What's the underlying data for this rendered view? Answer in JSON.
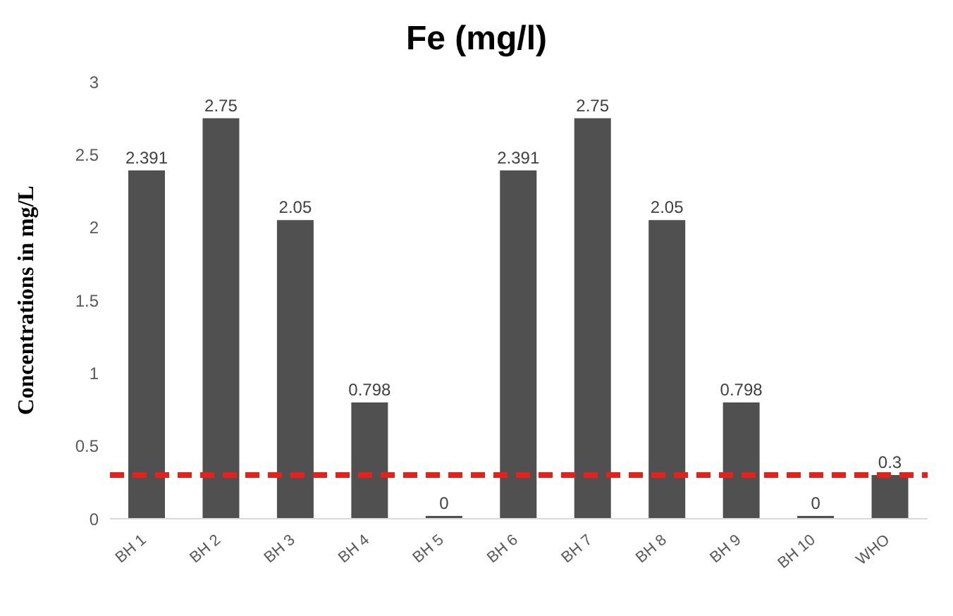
{
  "chart_data": {
    "type": "bar",
    "title": "Fe (mg/l)",
    "ylabel": "Concentrations in mg/L",
    "categories": [
      "BH 1",
      "BH 2",
      "BH 3",
      "BH 4",
      "BH 5",
      "BH 6",
      "BH 7",
      "BH 8",
      "BH 9",
      "BH 10",
      "WHO"
    ],
    "values": [
      2.391,
      2.75,
      2.05,
      0.798,
      0,
      2.391,
      2.75,
      2.05,
      0.798,
      0,
      0.3
    ],
    "color": "#505050",
    "ylim": [
      0,
      3
    ],
    "yticks": [
      0,
      0.5,
      1,
      1.5,
      2,
      2.5,
      3
    ],
    "data_labels": true,
    "ref_lines": [
      {
        "axis": "y",
        "value": 0.3,
        "color": "#e8201a",
        "line_style": "dashed"
      }
    ]
  }
}
